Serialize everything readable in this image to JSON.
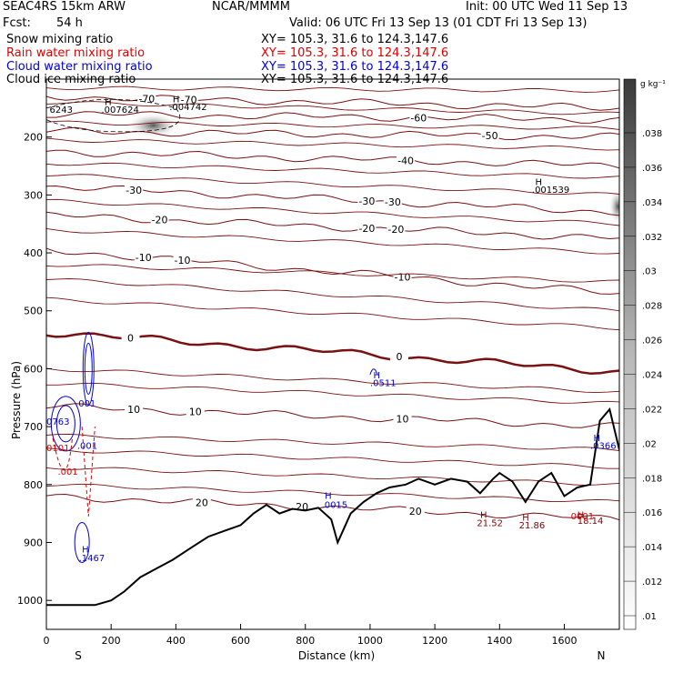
{
  "header": {
    "model": "SEAC4RS 15km ARW",
    "org": "NCAR/MMMM",
    "init": "Init: 00 UTC Wed 11 Sep 13",
    "fcst_label": "Fcst:",
    "fcst_value": "54 h",
    "valid": "Valid: 06 UTC Fri 13 Sep 13 (01 CDT Fri 13 Sep 13)"
  },
  "legend": [
    {
      "name": "Snow mixing ratio",
      "xy": "XY= 105.3, 31.6 to 124.3,147.6",
      "color": "#000000"
    },
    {
      "name": "Rain water mixing ratio",
      "xy": "XY= 105.3, 31.6 to 124.3,147.6",
      "color": "#e00000"
    },
    {
      "name": "Cloud water mixing ratio",
      "xy": "XY= 105.3, 31.6 to 124.3,147.6",
      "color": "#0000e0"
    },
    {
      "name": "Cloud ice mixing ratio",
      "xy": "XY= 105.3, 31.6 to 124.3,147.6",
      "color": "#000000"
    }
  ],
  "chart_data": {
    "type": "cross-section",
    "xlabel": "Distance (km)",
    "ylabel": "Pressure (hPa)",
    "xlim": [
      0,
      1770
    ],
    "ylim": [
      1050,
      100
    ],
    "x_ticks": [
      0,
      200,
      400,
      600,
      800,
      1000,
      1200,
      1400,
      1600
    ],
    "y_ticks": [
      200,
      300,
      400,
      500,
      600,
      700,
      800,
      900,
      1000
    ],
    "x_end_labels": {
      "left": "S",
      "right": "N"
    },
    "colorbar": {
      "unit": "g kg⁻¹",
      "labels": [
        ".038",
        ".036",
        ".034",
        ".032",
        ".03",
        ".028",
        ".026",
        ".024",
        ".022",
        ".02",
        ".018",
        ".016",
        ".014",
        ".012",
        ".01"
      ]
    },
    "terrain": {
      "x": [
        0,
        150,
        200,
        240,
        290,
        340,
        390,
        450,
        500,
        550,
        600,
        640,
        680,
        720,
        760,
        800,
        840,
        880,
        900,
        940,
        980,
        1020,
        1060,
        1110,
        1150,
        1200,
        1250,
        1300,
        1340,
        1380,
        1400,
        1440,
        1480,
        1520,
        1560,
        1600,
        1640,
        1680,
        1710,
        1740,
        1770
      ],
      "p": [
        1008,
        1008,
        1000,
        985,
        960,
        945,
        930,
        908,
        890,
        880,
        870,
        850,
        835,
        850,
        842,
        845,
        840,
        860,
        900,
        850,
        830,
        815,
        805,
        800,
        790,
        800,
        790,
        795,
        815,
        790,
        780,
        795,
        830,
        795,
        780,
        820,
        805,
        800,
        690,
        670,
        740
      ]
    },
    "isotherms": [
      {
        "label": "-70",
        "p_left": 130,
        "p_right": 150,
        "label_x": [
          310,
          440
        ]
      },
      {
        "label": "-60",
        "p_left": 160,
        "p_right": 170,
        "label_x": [
          1150
        ]
      },
      {
        "label": "-50",
        "p_left": 190,
        "p_right": 200,
        "label_x": [
          1370
        ]
      },
      {
        "label": "-40",
        "p_left": 225,
        "p_right": 250,
        "label_x": [
          1110
        ]
      },
      {
        "label": "-30",
        "p_left": 285,
        "p_right": 330,
        "label_x": [
          270,
          990,
          1070
        ]
      },
      {
        "label": "-20",
        "p_left": 335,
        "p_right": 375,
        "label_x": [
          350,
          990,
          1080
        ]
      },
      {
        "label": "-10",
        "p_left": 395,
        "p_right": 470,
        "label_x": [
          300,
          420,
          1100
        ]
      },
      {
        "label": "0",
        "p_left": 537,
        "p_right": 605,
        "label_x": [
          260,
          1090
        ]
      },
      {
        "label": "10",
        "p_left": 665,
        "p_right": 700,
        "label_x": [
          270,
          460,
          1100
        ]
      },
      {
        "label": "20",
        "p_left": 820,
        "p_right": 860,
        "label_x": [
          480,
          1140,
          790
        ]
      }
    ],
    "annotations": [
      {
        "text": "H",
        "x": 180,
        "y": 145,
        "color": "#000000"
      },
      {
        "text": ".007624",
        "x": 170,
        "y": 158,
        "color": "#000000"
      },
      {
        "text": "H",
        "x": 390,
        "y": 140,
        "color": "#000000"
      },
      {
        "text": ".004742",
        "x": 380,
        "y": 153,
        "color": "#000000"
      },
      {
        "text": "6243",
        "x": 10,
        "y": 158,
        "color": "#000000"
      },
      {
        "text": "H",
        "x": 1510,
        "y": 283,
        "color": "#000000"
      },
      {
        "text": ".001539",
        "x": 1500,
        "y": 296,
        "color": "#000000"
      },
      {
        "text": "H",
        "x": 1010,
        "y": 617,
        "color": "#0000e0"
      },
      {
        "text": ".0511",
        "x": 1000,
        "y": 630,
        "color": "#0000e0"
      },
      {
        "text": "H",
        "x": 860,
        "y": 825,
        "color": "#0000e0"
      },
      {
        "text": ".0015",
        "x": 850,
        "y": 840,
        "color": "#0000e0"
      },
      {
        "text": "H",
        "x": 1690,
        "y": 725,
        "color": "#0000e0"
      },
      {
        "text": ".0366",
        "x": 1680,
        "y": 738,
        "color": "#0000e0"
      },
      {
        "text": "H",
        "x": 110,
        "y": 917,
        "color": "#0000e0"
      },
      {
        "text": ".1467",
        "x": 100,
        "y": 932,
        "color": "#0000e0"
      },
      {
        "text": ".001",
        "x": 90,
        "y": 665,
        "color": "#0000e0"
      },
      {
        "text": "0763",
        "x": 0,
        "y": 697,
        "color": "#0000e0"
      },
      {
        "text": ".001",
        "x": 95,
        "y": 738,
        "color": "#0000e0"
      },
      {
        "text": "0101",
        "x": 0,
        "y": 742,
        "color": "#e00000"
      },
      {
        "text": ".001",
        "x": 35,
        "y": 783,
        "color": "#e00000"
      },
      {
        "text": "H",
        "x": 1340,
        "y": 858,
        "color": "#800000"
      },
      {
        "text": "21.52",
        "x": 1330,
        "y": 872,
        "color": "#800000"
      },
      {
        "text": "H",
        "x": 1470,
        "y": 862,
        "color": "#800000"
      },
      {
        "text": "21.86",
        "x": 1460,
        "y": 876,
        "color": "#800000"
      },
      {
        "text": "H",
        "x": 1640,
        "y": 858,
        "color": "#800000"
      },
      {
        "text": "18.14",
        "x": 1640,
        "y": 868,
        "color": "#800000"
      },
      {
        "text": "0001",
        "x": 1620,
        "y": 860,
        "color": "#e00000"
      }
    ],
    "colors": {
      "isotherm": "#7a1010",
      "terrain": "#000000",
      "cloud_water": "#0000e0",
      "rain": "#e00000"
    }
  }
}
